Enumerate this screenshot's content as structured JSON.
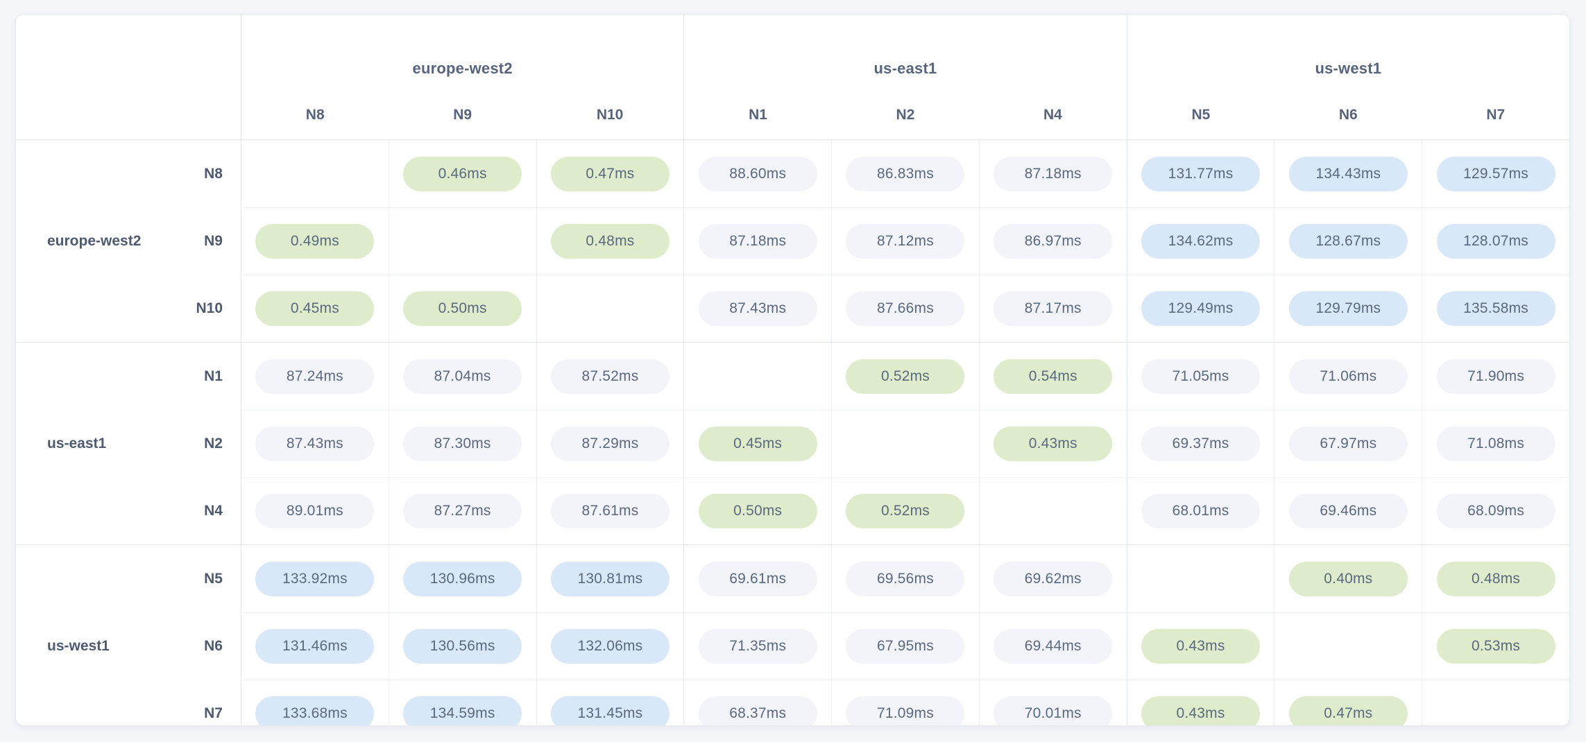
{
  "app": {
    "view_name": "network-latency-matrix",
    "unit": "ms"
  },
  "colors": {
    "page_background": "#f3f5f9",
    "card_background": "#ffffff",
    "low_latency_pill": "#deeccb",
    "mid_latency_pill": "#f2f4f9",
    "high_latency_pill": "#d8e8f8",
    "label_text": "#4d5a72",
    "header_text": "#57647e",
    "value_text": "#5a6880"
  },
  "latency_thresholds": {
    "low_below_ms": 1,
    "high_at_or_above_ms": 100
  },
  "matrix": {
    "column_groups": [
      {
        "region": "europe-west2",
        "nodes": [
          "N8",
          "N9",
          "N10"
        ]
      },
      {
        "region": "us-east1",
        "nodes": [
          "N1",
          "N2",
          "N4"
        ]
      },
      {
        "region": "us-west1",
        "nodes": [
          "N5",
          "N6",
          "N7"
        ]
      }
    ],
    "row_groups": [
      {
        "region": "europe-west2",
        "rows": [
          {
            "node": "N8",
            "values": [
              "",
              "0.46ms",
              "0.47ms",
              "88.60ms",
              "86.83ms",
              "87.18ms",
              "131.77ms",
              "134.43ms",
              "129.57ms"
            ]
          },
          {
            "node": "N9",
            "values": [
              "0.49ms",
              "",
              "0.48ms",
              "87.18ms",
              "87.12ms",
              "86.97ms",
              "134.62ms",
              "128.67ms",
              "128.07ms"
            ]
          },
          {
            "node": "N10",
            "values": [
              "0.45ms",
              "0.50ms",
              "",
              "87.43ms",
              "87.66ms",
              "87.17ms",
              "129.49ms",
              "129.79ms",
              "135.58ms"
            ]
          }
        ]
      },
      {
        "region": "us-east1",
        "rows": [
          {
            "node": "N1",
            "values": [
              "87.24ms",
              "87.04ms",
              "87.52ms",
              "",
              "0.52ms",
              "0.54ms",
              "71.05ms",
              "71.06ms",
              "71.90ms"
            ]
          },
          {
            "node": "N2",
            "values": [
              "87.43ms",
              "87.30ms",
              "87.29ms",
              "0.45ms",
              "",
              "0.43ms",
              "69.37ms",
              "67.97ms",
              "71.08ms"
            ]
          },
          {
            "node": "N4",
            "values": [
              "89.01ms",
              "87.27ms",
              "87.61ms",
              "0.50ms",
              "0.52ms",
              "",
              "68.01ms",
              "69.46ms",
              "68.09ms"
            ]
          }
        ]
      },
      {
        "region": "us-west1",
        "rows": [
          {
            "node": "N5",
            "values": [
              "133.92ms",
              "130.96ms",
              "130.81ms",
              "69.61ms",
              "69.56ms",
              "69.62ms",
              "",
              "0.40ms",
              "0.48ms"
            ]
          },
          {
            "node": "N6",
            "values": [
              "131.46ms",
              "130.56ms",
              "132.06ms",
              "71.35ms",
              "67.95ms",
              "69.44ms",
              "0.43ms",
              "",
              "0.53ms"
            ]
          },
          {
            "node": "N7",
            "values": [
              "133.68ms",
              "134.59ms",
              "131.45ms",
              "68.37ms",
              "71.09ms",
              "70.01ms",
              "0.43ms",
              "0.47ms",
              ""
            ]
          }
        ]
      }
    ]
  }
}
